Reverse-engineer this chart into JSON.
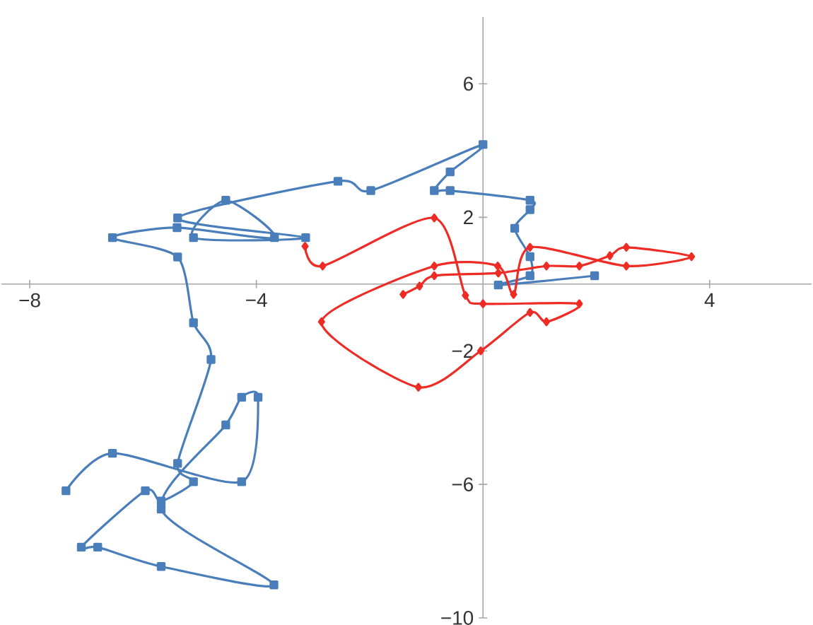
{
  "chart_data": {
    "type": "line",
    "xlim": [
      -8.5,
      5.8
    ],
    "ylim": [
      -10,
      8
    ],
    "xticks": [
      {
        "value": -8,
        "label": "−8"
      },
      {
        "value": -4,
        "label": "−4"
      },
      {
        "value": 0,
        "label": null
      },
      4
    ],
    "yticks": [
      {
        "value": -10,
        "label": "−10"
      },
      {
        "value": -6,
        "label": "−6"
      },
      {
        "value": -2,
        "label": "−2"
      },
      2,
      6
    ],
    "grid": false,
    "line_style": "solid",
    "series": [
      {
        "color": "#4a7ebb",
        "marker": "square",
        "x": [
          1.97,
          0.27,
          0.83,
          0.83,
          0.56,
          0.83,
          0.83,
          -0.58,
          -0.86,
          -0.58,
          0,
          -1.98,
          -2.56,
          -5.39,
          -3.13,
          -5.11,
          -4.54,
          -3.68,
          -5.4,
          -6.54,
          -5.39,
          -5.11,
          -4.8,
          -5.39,
          -5.11,
          -5.68,
          -5.96,
          -7.09,
          -6.8,
          -5.68,
          -3.69,
          -5.68,
          -4.54,
          -4.26,
          -3.97,
          -4.26,
          -6.54,
          -7.36
        ],
        "values": [
          0.25,
          -0.03,
          0.25,
          0.82,
          1.67,
          2.23,
          2.51,
          2.8,
          2.8,
          3.36,
          4.18,
          2.8,
          3.08,
          1.98,
          1.39,
          1.39,
          2.51,
          1.39,
          1.69,
          1.39,
          0.81,
          -1.16,
          -2.26,
          -5.37,
          -5.92,
          -6.5,
          -6.19,
          -7.88,
          -7.88,
          -8.46,
          -9.01,
          -6.74,
          -4.22,
          -3.39,
          -3.39,
          -5.92,
          -5.07,
          -6.19
        ]
      },
      {
        "color": "#ee2b24",
        "marker": "diamond",
        "x": [
          -1.41,
          -1.12,
          -0.86,
          0.27,
          1.12,
          1.7,
          2.24,
          2.53,
          3.68,
          2.53,
          0.83,
          0.54,
          0.26,
          -0.86,
          -2.85,
          -1.14,
          -0.04,
          0.83,
          1.12,
          1.7,
          0,
          -0.31,
          -0.86,
          -2.83,
          -3.14
        ],
        "values": [
          -0.31,
          -0.06,
          0.25,
          0.33,
          0.54,
          0.54,
          0.85,
          1.1,
          0.82,
          0.54,
          1.1,
          -0.31,
          0.54,
          0.54,
          -1.13,
          -3.09,
          -2.0,
          -0.85,
          -1.13,
          -0.59,
          -0.59,
          -0.34,
          1.98,
          0.54,
          1.13
        ]
      }
    ]
  }
}
